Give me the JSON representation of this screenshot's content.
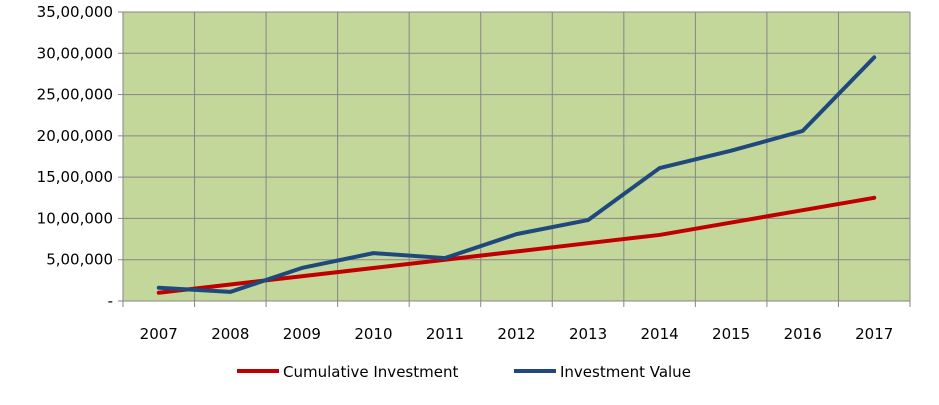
{
  "chart_data": {
    "type": "line",
    "title": "",
    "xlabel": "",
    "ylabel": "",
    "categories": [
      "2007",
      "2008",
      "2009",
      "2010",
      "2011",
      "2012",
      "2013",
      "2014",
      "2015",
      "2016",
      "2017"
    ],
    "ylim": [
      0,
      3500000
    ],
    "yticks": [
      0,
      500000,
      1000000,
      1500000,
      2000000,
      2500000,
      3000000,
      3500000
    ],
    "ytick_labels": [
      "-",
      "5,00,000",
      "10,00,000",
      "15,00,000",
      "20,00,000",
      "25,00,000",
      "30,00,000",
      "35,00,000"
    ],
    "grid": true,
    "plot_background": "#c4d79b",
    "grid_color": "#868686",
    "legend_position": "bottom",
    "series": [
      {
        "name": "Cumulative Investment",
        "color": "#c00000",
        "values": [
          100000,
          200000,
          300000,
          400000,
          500000,
          600000,
          700000,
          800000,
          950000,
          1100000,
          1250000
        ]
      },
      {
        "name": "Investment Value",
        "color": "#1f497d",
        "values": [
          160000,
          110000,
          400000,
          580000,
          520000,
          810000,
          980000,
          1610000,
          1820000,
          2060000,
          2950000
        ]
      }
    ]
  }
}
